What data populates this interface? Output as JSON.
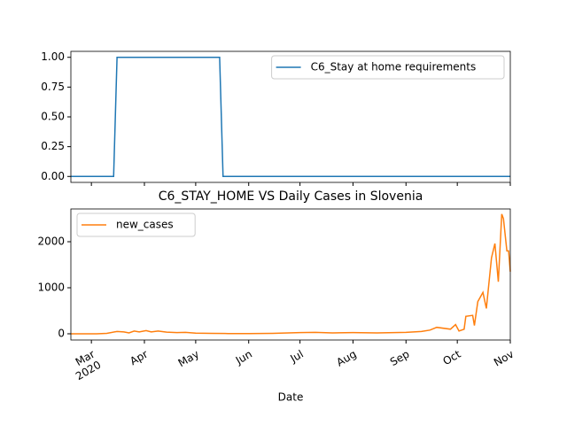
{
  "chart_data": [
    {
      "type": "line",
      "xlim": [
        "2020-02-18",
        "2020-11-01"
      ],
      "xticks": [
        "2020-03",
        "2020-04",
        "2020-05",
        "2020-06",
        "2020-07",
        "2020-08",
        "2020-09",
        "2020-10",
        "2020-11"
      ],
      "ylim": [
        -0.05,
        1.05
      ],
      "yticks": [
        {
          "value": 0,
          "label": "0.00"
        },
        {
          "value": 0.25,
          "label": "0.25"
        },
        {
          "value": 0.5,
          "label": "0.50"
        },
        {
          "value": 0.75,
          "label": "0.75"
        },
        {
          "value": 1,
          "label": "1.00"
        }
      ],
      "legend": "upper right",
      "series": [
        {
          "name": "C6_Stay at home requirements",
          "color": "#1f77b4",
          "x": [
            "2020-02-18",
            "2020-03-14",
            "2020-03-16",
            "2020-05-15",
            "2020-05-17",
            "2020-11-01"
          ],
          "values": [
            0,
            0,
            1,
            1,
            0,
            0
          ]
        }
      ]
    },
    {
      "type": "line",
      "title": "C6_STAY_HOME VS Daily Cases in Slovenia",
      "xlabel": "Date",
      "xlim": [
        "2020-02-18",
        "2020-11-01"
      ],
      "xticks": [
        {
          "value": "2020-03",
          "label": "Mar"
        },
        {
          "value": "2020-04",
          "label": "Apr"
        },
        {
          "value": "2020-05",
          "label": "May"
        },
        {
          "value": "2020-06",
          "label": "Jun"
        },
        {
          "value": "2020-07",
          "label": "Jul"
        },
        {
          "value": "2020-08",
          "label": "Aug"
        },
        {
          "value": "2020-09",
          "label": "Sep"
        },
        {
          "value": "2020-10",
          "label": "Oct"
        },
        {
          "value": "2020-11",
          "label": "Nov"
        }
      ],
      "xtick_year": "2020",
      "ylim": [
        -135,
        2712
      ],
      "yticks": [
        0,
        1000,
        2000
      ],
      "legend": "upper left",
      "series": [
        {
          "name": "new_cases",
          "color": "#ff7f0e",
          "x": [
            "2020-02-18",
            "2020-03-04",
            "2020-03-10",
            "2020-03-16",
            "2020-03-20",
            "2020-03-23",
            "2020-03-26",
            "2020-03-29",
            "2020-04-02",
            "2020-04-05",
            "2020-04-09",
            "2020-04-14",
            "2020-04-20",
            "2020-04-25",
            "2020-05-01",
            "2020-05-10",
            "2020-05-20",
            "2020-06-01",
            "2020-06-15",
            "2020-07-01",
            "2020-07-10",
            "2020-07-20",
            "2020-08-01",
            "2020-08-15",
            "2020-09-01",
            "2020-09-10",
            "2020-09-15",
            "2020-09-19",
            "2020-09-27",
            "2020-09-30",
            "2020-10-02",
            "2020-10-05",
            "2020-10-06",
            "2020-10-10",
            "2020-10-11",
            "2020-10-13",
            "2020-10-16",
            "2020-10-18",
            "2020-10-21",
            "2020-10-23",
            "2020-10-25",
            "2020-10-27",
            "2020-10-28",
            "2020-10-30",
            "2020-10-31",
            "2020-11-01"
          ],
          "values": [
            0,
            0,
            10,
            50,
            40,
            20,
            60,
            40,
            70,
            40,
            60,
            35,
            25,
            30,
            15,
            10,
            5,
            5,
            10,
            25,
            30,
            20,
            25,
            20,
            30,
            50,
            80,
            140,
            100,
            200,
            60,
            100,
            380,
            400,
            180,
            700,
            900,
            550,
            1650,
            1960,
            1130,
            2600,
            2500,
            1800,
            1800,
            1350
          ]
        }
      ]
    }
  ]
}
